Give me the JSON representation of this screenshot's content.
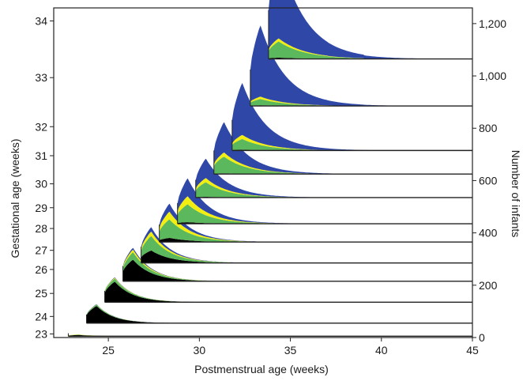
{
  "chart_data": {
    "type": "area",
    "title": "",
    "xlabel": "Postmenstrual age (weeks)",
    "ylabel_left": "Gestational age (weeks)",
    "ylabel_right": "Number of infants",
    "xlim": [
      22,
      45
    ],
    "x_ticks": [
      {
        "value": 25,
        "label": "25"
      },
      {
        "value": 30,
        "label": "30"
      },
      {
        "value": 35,
        "label": "35"
      },
      {
        "value": 40,
        "label": "40"
      },
      {
        "value": 45,
        "label": "45"
      }
    ],
    "right_axis": {
      "range": [
        0,
        1260
      ],
      "ticks": [
        {
          "value": 0,
          "label": "0"
        },
        {
          "value": 200,
          "label": "200"
        },
        {
          "value": 400,
          "label": "400"
        },
        {
          "value": 600,
          "label": "600"
        },
        {
          "value": 800,
          "label": "800"
        },
        {
          "value": 1000,
          "label": "1,000"
        },
        {
          "value": 1200,
          "label": "1,200"
        }
      ]
    },
    "grid": false,
    "legend": "none",
    "colors": {
      "black": "#000000",
      "green": "#5cb85c",
      "yellow": "#f2ee12",
      "blue": "#2f48a8",
      "outline": "#222222"
    },
    "cohorts": [
      {
        "ga": 23,
        "ga_label": "23",
        "baseline": 5,
        "start": 22.8,
        "peak": 25,
        "bands": [
          [
            0,
            5
          ],
          [
            0,
            1
          ],
          [
            0,
            1
          ],
          [
            0,
            0
          ]
        ],
        "tail": [
          30.0,
          34.0,
          38.0,
          41.0
        ]
      },
      {
        "ga": 24,
        "ga_label": "24",
        "baseline": 55,
        "start": 23.8,
        "peak": 73,
        "bands": [
          [
            0,
            66
          ],
          [
            0,
            5
          ],
          [
            0,
            1
          ],
          [
            0,
            1
          ]
        ],
        "tail": [
          31.0,
          35.0,
          39.0,
          42.0
        ]
      },
      {
        "ga": 25,
        "ga_label": "25",
        "baseline": 135,
        "start": 24.8,
        "peak": 96,
        "bands": [
          [
            0,
            79
          ],
          [
            0,
            12
          ],
          [
            0,
            3
          ],
          [
            0,
            2
          ]
        ],
        "tail": [
          32.0,
          35.5,
          40.0,
          43.0
        ]
      },
      {
        "ga": 26,
        "ga_label": "26",
        "baseline": 215,
        "start": 25.8,
        "peak": 129,
        "bands": [
          [
            0,
            83
          ],
          [
            0,
            29
          ],
          [
            0,
            10
          ],
          [
            0,
            7
          ]
        ],
        "tail": [
          33.0,
          36.5,
          41.0,
          44.5
        ]
      },
      {
        "ga": 27,
        "ga_label": "27",
        "baseline": 285,
        "start": 26.8,
        "peak": 138,
        "bands": [
          [
            0,
            48
          ],
          [
            0,
            56
          ],
          [
            0,
            17
          ],
          [
            0,
            17
          ]
        ],
        "tail": [
          33.5,
          37.0,
          41.5,
          45.0
        ]
      },
      {
        "ga": 28,
        "ga_label": "28",
        "baseline": 365,
        "start": 27.8,
        "peak": 148,
        "bands": [
          [
            0,
            16
          ],
          [
            0,
            71
          ],
          [
            0,
            30
          ],
          [
            0,
            31
          ]
        ],
        "tail": [
          34.0,
          38.0,
          42.0,
          45.0
        ]
      },
      {
        "ga": 29,
        "ga_label": "29",
        "baseline": 435,
        "start": 28.8,
        "peak": 175,
        "bands": [
          [
            0,
            6
          ],
          [
            0,
            69
          ],
          [
            0,
            31
          ],
          [
            0,
            69
          ]
        ],
        "tail": [
          34.5,
          38.0,
          41.0,
          45.0
        ]
      },
      {
        "ga": 30,
        "ga_label": "30",
        "baseline": 535,
        "start": 29.8,
        "peak": 150,
        "bands": [
          [
            0,
            3
          ],
          [
            0,
            56
          ],
          [
            0,
            16
          ],
          [
            0,
            75
          ]
        ],
        "tail": [
          35.0,
          39.0,
          41.0,
          45.0
        ]
      },
      {
        "ga": 31,
        "ga_label": "31",
        "baseline": 625,
        "start": 30.8,
        "peak": 200,
        "bands": [
          [
            0,
            3
          ],
          [
            0,
            64
          ],
          [
            0,
            16
          ],
          [
            0,
            117
          ]
        ],
        "tail": [
          36.0,
          39.0,
          41.0,
          41.5
        ]
      },
      {
        "ga": 32,
        "ga_label": "32",
        "baseline": 715,
        "start": 31.8,
        "peak": 260,
        "bands": [
          [
            0,
            3
          ],
          [
            0,
            41
          ],
          [
            0,
            16
          ],
          [
            0,
            200
          ]
        ],
        "tail": [
          37.0,
          39.0,
          41.0,
          43.0
        ]
      },
      {
        "ga": 33,
        "ga_label": "33",
        "baseline": 885,
        "start": 32.8,
        "peak": 310,
        "bands": [
          [
            0,
            3
          ],
          [
            0,
            24
          ],
          [
            0,
            9
          ],
          [
            0,
            274
          ]
        ],
        "tail": [
          37.0,
          39.0,
          41.0,
          45.0
        ]
      },
      {
        "ga": 34,
        "ga_label": "34",
        "baseline": 1065,
        "start": 33.8,
        "peak": 415,
        "bands": [
          [
            0,
            5
          ],
          [
            0,
            62
          ],
          [
            0,
            12
          ],
          [
            0,
            336
          ]
        ],
        "tail": [
          37.0,
          39.0,
          41.0,
          44.0
        ]
      }
    ]
  }
}
